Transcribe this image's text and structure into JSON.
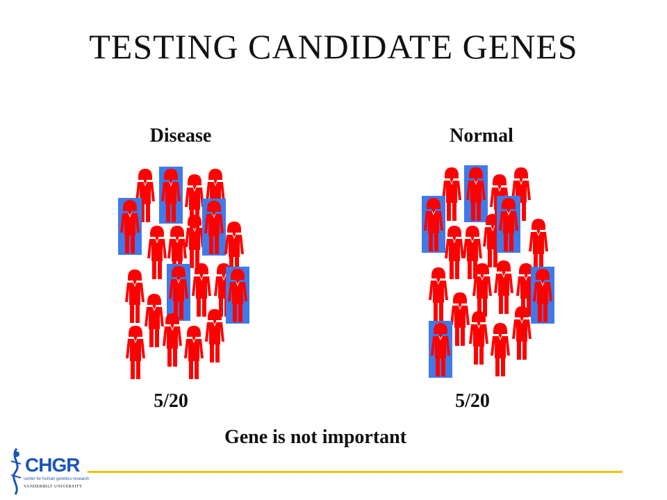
{
  "slide": {
    "title": "TESTING CANDIDATE GENES",
    "conclusion": "Gene is not important"
  },
  "groups": [
    {
      "label": "Disease",
      "ratio": "5/20",
      "highlighted": 5,
      "total": 20
    },
    {
      "label": "Normal",
      "ratio": "5/20",
      "highlighted": 5,
      "total": 20
    }
  ],
  "logo": {
    "name": "CHGR",
    "subtitle": "center for human genetics research",
    "university": "VANDERBILT UNIVERSITY"
  },
  "colors": {
    "person": "#ff0000",
    "highlight": "#3f7ae8",
    "rule": "#f2c200",
    "logo": "#1a55b8"
  }
}
